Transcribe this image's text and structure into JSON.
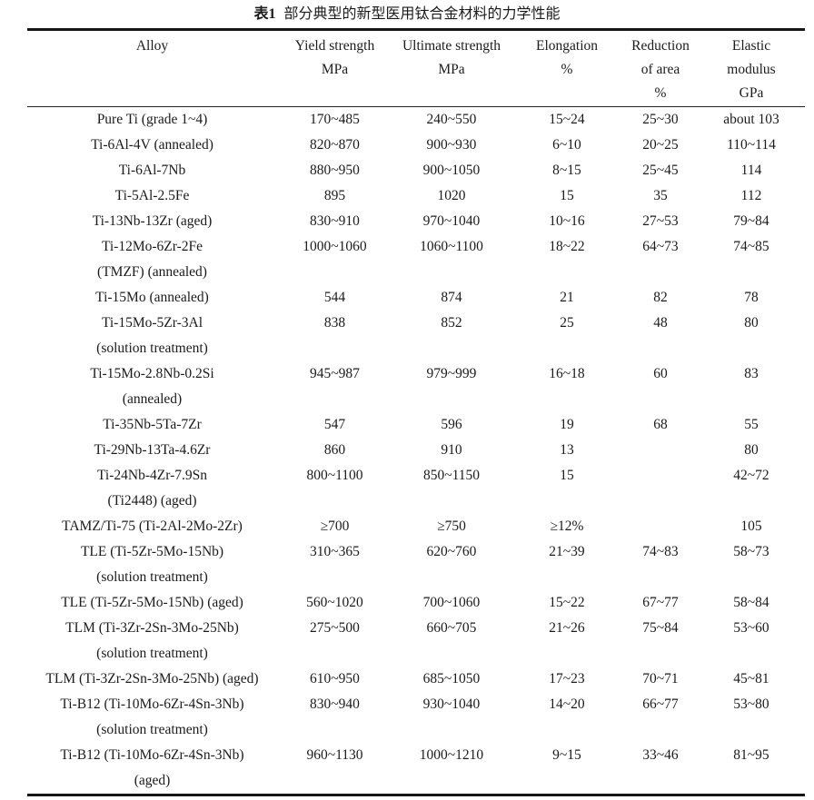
{
  "page": {
    "background": "#ffffff",
    "text_color": "#1b1b1b",
    "rule_color": "#161616"
  },
  "table": {
    "title": {
      "label": "表1",
      "text": "部分典型的新型医用钛合金材料的力学性能"
    },
    "header": {
      "col1": [
        "Alloy"
      ],
      "col2": [
        "Yield strength",
        "MPa"
      ],
      "col3": [
        "Ultimate strength",
        "MPa"
      ],
      "col4": [
        "Elongation",
        "%"
      ],
      "col5": [
        "Reduction",
        "of area",
        "%"
      ],
      "col6": [
        "Elastic",
        "modulus",
        "GPa"
      ]
    },
    "rows": [
      {
        "alloy": "Pure Ti (grade 1~4)",
        "alloy2": "",
        "ys": "170~485",
        "us": "240~550",
        "el": "15~24",
        "ra": "25~30",
        "em": "about 103"
      },
      {
        "alloy": "Ti-6Al-4V (annealed)",
        "alloy2": "",
        "ys": "820~870",
        "us": "900~930",
        "el": "6~10",
        "ra": "20~25",
        "em": "110~114"
      },
      {
        "alloy": "Ti-6Al-7Nb",
        "alloy2": "",
        "ys": "880~950",
        "us": "900~1050",
        "el": "8~15",
        "ra": "25~45",
        "em": "114"
      },
      {
        "alloy": "Ti-5Al-2.5Fe",
        "alloy2": "",
        "ys": "895",
        "us": "1020",
        "el": "15",
        "ra": "35",
        "em": "112"
      },
      {
        "alloy": "Ti-13Nb-13Zr (aged)",
        "alloy2": "",
        "ys": "830~910",
        "us": "970~1040",
        "el": "10~16",
        "ra": "27~53",
        "em": "79~84"
      },
      {
        "alloy": "Ti-12Mo-6Zr-2Fe",
        "alloy2": "(TMZF) (annealed)",
        "ys": "1000~1060",
        "us": "1060~1100",
        "el": "18~22",
        "ra": "64~73",
        "em": "74~85"
      },
      {
        "alloy": "Ti-15Mo (annealed)",
        "alloy2": "",
        "ys": "544",
        "us": "874",
        "el": "21",
        "ra": "82",
        "em": "78"
      },
      {
        "alloy": "Ti-15Mo-5Zr-3Al",
        "alloy2": "(solution treatment)",
        "ys": "838",
        "us": "852",
        "el": "25",
        "ra": "48",
        "em": "80"
      },
      {
        "alloy": "Ti-15Mo-2.8Nb-0.2Si",
        "alloy2": "(annealed)",
        "ys": "945~987",
        "us": "979~999",
        "el": "16~18",
        "ra": "60",
        "em": "83"
      },
      {
        "alloy": "Ti-35Nb-5Ta-7Zr",
        "alloy2": "",
        "ys": "547",
        "us": "596",
        "el": "19",
        "ra": "68",
        "em": "55"
      },
      {
        "alloy": "Ti-29Nb-13Ta-4.6Zr",
        "alloy2": "",
        "ys": "860",
        "us": "910",
        "el": "13",
        "ra": "",
        "em": "80"
      },
      {
        "alloy": "Ti-24Nb-4Zr-7.9Sn",
        "alloy2": "(Ti2448) (aged)",
        "ys": "800~1100",
        "us": "850~1150",
        "el": "15",
        "ra": "",
        "em": "42~72"
      },
      {
        "alloy": "TAMZ/Ti-75 (Ti-2Al-2Mo-2Zr)",
        "alloy2": "",
        "ys": "≥700",
        "us": "≥750",
        "el": "≥12%",
        "ra": "",
        "em": "105"
      },
      {
        "alloy": "TLE (Ti-5Zr-5Mo-15Nb)",
        "alloy2": "(solution treatment)",
        "ys": "310~365",
        "us": "620~760",
        "el": "21~39",
        "ra": "74~83",
        "em": "58~73"
      },
      {
        "alloy": "TLE (Ti-5Zr-5Mo-15Nb) (aged)",
        "alloy2": "",
        "ys": "560~1020",
        "us": "700~1060",
        "el": "15~22",
        "ra": "67~77",
        "em": "58~84"
      },
      {
        "alloy": "TLM (Ti-3Zr-2Sn-3Mo-25Nb)",
        "alloy2": "(solution treatment)",
        "ys": "275~500",
        "us": "660~705",
        "el": "21~26",
        "ra": "75~84",
        "em": "53~60"
      },
      {
        "alloy": "TLM (Ti-3Zr-2Sn-3Mo-25Nb) (aged)",
        "alloy2": "",
        "ys": "610~950",
        "us": "685~1050",
        "el": "17~23",
        "ra": "70~71",
        "em": "45~81"
      },
      {
        "alloy": "Ti-B12 (Ti-10Mo-6Zr-4Sn-3Nb)",
        "alloy2": "(solution treatment)",
        "ys": "830~940",
        "us": "930~1040",
        "el": "14~20",
        "ra": "66~77",
        "em": "53~80"
      },
      {
        "alloy": "Ti-B12 (Ti-10Mo-6Zr-4Sn-3Nb)",
        "alloy2": "(aged)",
        "ys": "960~1130",
        "us": "1000~1210",
        "el": "9~15",
        "ra": "33~46",
        "em": "81~95"
      }
    ]
  }
}
